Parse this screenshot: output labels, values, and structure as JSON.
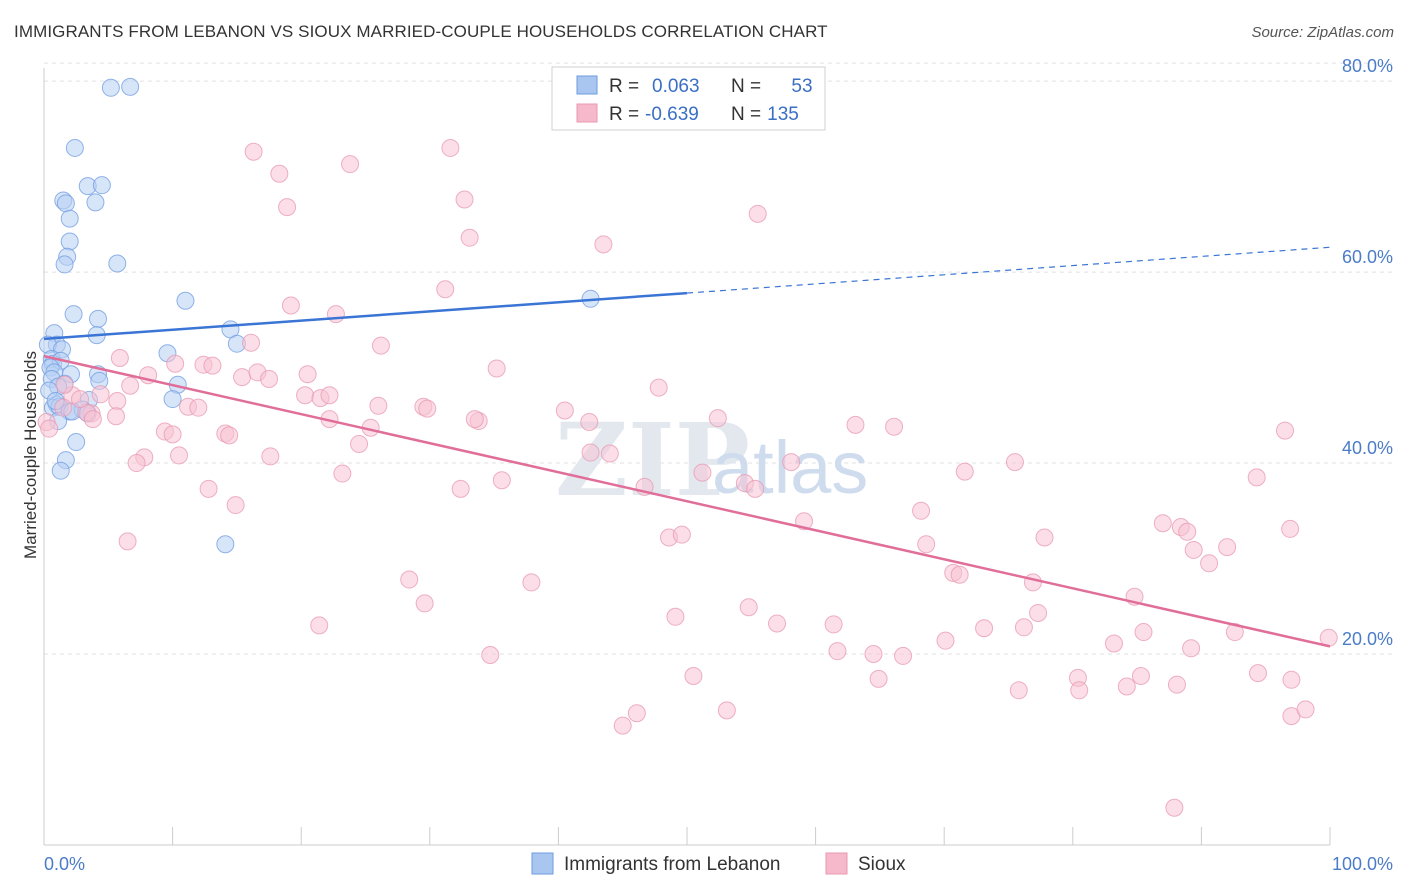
{
  "title": "IMMIGRANTS FROM LEBANON VS SIOUX MARRIED-COUPLE HOUSEHOLDS CORRELATION CHART",
  "source": "Source: ZipAtlas.com",
  "watermark": {
    "zip": "ZIP",
    "atlas": "atlas"
  },
  "legend": {
    "r_label": "R =",
    "n_label": "N =",
    "rows": [
      {
        "r": "0.063",
        "n": "53",
        "color": "#a9c6f0"
      },
      {
        "r": "-0.639",
        "n": "135",
        "color": "#f6b8cb"
      }
    ]
  },
  "colors": {
    "blue": "#3a75d6",
    "pink": "#e06e98",
    "blue_fill": "#b7d0f4",
    "pink_fill": "#f7c3d3"
  },
  "chart_data": {
    "type": "scatter",
    "title": "IMMIGRANTS FROM LEBANON VS SIOUX MARRIED-COUPLE HOUSEHOLDS CORRELATION CHART",
    "xlabel": "",
    "ylabel": "Married-couple Households",
    "xlim": [
      0,
      100
    ],
    "ylim": [
      0,
      82
    ],
    "x_tick_labels": [
      "0.0%",
      "100.0%"
    ],
    "y_ticks": [
      20,
      40,
      60,
      80
    ],
    "y_tick_labels": [
      "20.0%",
      "40.0%",
      "60.0%",
      "80.0%"
    ],
    "grid": true,
    "series": [
      {
        "name": "Immigrants from Lebanon",
        "color": "#3a75d6",
        "r": 0.063,
        "n": 53,
        "trend": {
          "x": [
            0,
            50
          ],
          "y": [
            53.0,
            57.8
          ],
          "dashed_to": [
            100,
            62.6
          ]
        },
        "points": [
          [
            5.2,
            79.3
          ],
          [
            6.7,
            79.4
          ],
          [
            2.4,
            73.0
          ],
          [
            3.4,
            69.0
          ],
          [
            4.5,
            69.1
          ],
          [
            1.5,
            67.5
          ],
          [
            1.7,
            67.2
          ],
          [
            4.0,
            67.3
          ],
          [
            2.0,
            65.6
          ],
          [
            2.0,
            63.2
          ],
          [
            1.8,
            61.6
          ],
          [
            1.6,
            60.8
          ],
          [
            5.7,
            60.9
          ],
          [
            11.0,
            57.0
          ],
          [
            42.5,
            57.2
          ],
          [
            2.3,
            55.6
          ],
          [
            4.2,
            55.1
          ],
          [
            0.8,
            53.6
          ],
          [
            4.1,
            53.4
          ],
          [
            14.5,
            54.0
          ],
          [
            1.0,
            52.4
          ],
          [
            15.0,
            52.5
          ],
          [
            0.3,
            52.4
          ],
          [
            1.4,
            51.9
          ],
          [
            9.6,
            51.5
          ],
          [
            0.6,
            50.9
          ],
          [
            0.7,
            50.4
          ],
          [
            1.3,
            50.7
          ],
          [
            0.5,
            50.0
          ],
          [
            0.8,
            49.5
          ],
          [
            4.2,
            49.3
          ],
          [
            2.1,
            49.3
          ],
          [
            0.6,
            48.8
          ],
          [
            4.3,
            48.6
          ],
          [
            1.6,
            48.3
          ],
          [
            10.4,
            48.2
          ],
          [
            1.1,
            48.0
          ],
          [
            0.4,
            47.6
          ],
          [
            3.5,
            46.6
          ],
          [
            10.0,
            46.7
          ],
          [
            1.0,
            46.1
          ],
          [
            0.7,
            45.8
          ],
          [
            1.2,
            45.9
          ],
          [
            2.0,
            45.4
          ],
          [
            3.0,
            45.6
          ],
          [
            2.2,
            45.4
          ],
          [
            1.1,
            44.4
          ],
          [
            2.5,
            42.2
          ],
          [
            1.7,
            40.3
          ],
          [
            1.3,
            39.2
          ],
          [
            14.1,
            31.5
          ],
          [
            3.4,
            45.2
          ],
          [
            0.9,
            46.5
          ]
        ]
      },
      {
        "name": "Sioux",
        "color": "#e06e98",
        "r": -0.639,
        "n": 135,
        "trend": {
          "x": [
            0,
            100
          ],
          "y": [
            51.2,
            20.8
          ]
        },
        "points": [
          [
            16.3,
            72.6
          ],
          [
            31.6,
            73.0
          ],
          [
            23.8,
            71.3
          ],
          [
            18.3,
            70.3
          ],
          [
            32.7,
            67.6
          ],
          [
            18.9,
            66.8
          ],
          [
            55.5,
            66.1
          ],
          [
            33.1,
            63.6
          ],
          [
            43.5,
            62.9
          ],
          [
            31.2,
            58.2
          ],
          [
            19.2,
            56.5
          ],
          [
            22.7,
            55.6
          ],
          [
            26.2,
            52.3
          ],
          [
            16.1,
            52.6
          ],
          [
            5.9,
            51.0
          ],
          [
            10.2,
            50.4
          ],
          [
            12.4,
            50.3
          ],
          [
            13.1,
            50.2
          ],
          [
            35.2,
            49.9
          ],
          [
            8.1,
            49.2
          ],
          [
            15.4,
            49.0
          ],
          [
            16.6,
            49.5
          ],
          [
            17.5,
            48.8
          ],
          [
            20.5,
            49.3
          ],
          [
            6.7,
            48.1
          ],
          [
            47.8,
            47.9
          ],
          [
            20.3,
            47.1
          ],
          [
            21.5,
            46.8
          ],
          [
            22.2,
            47.1
          ],
          [
            5.7,
            46.5
          ],
          [
            11.2,
            45.9
          ],
          [
            12.0,
            45.8
          ],
          [
            26.0,
            46.0
          ],
          [
            29.5,
            45.9
          ],
          [
            29.8,
            45.7
          ],
          [
            40.5,
            45.5
          ],
          [
            3.7,
            45.2
          ],
          [
            5.6,
            44.9
          ],
          [
            22.2,
            44.6
          ],
          [
            33.8,
            44.4
          ],
          [
            42.4,
            44.3
          ],
          [
            52.4,
            44.7
          ],
          [
            63.1,
            44.0
          ],
          [
            66.1,
            43.8
          ],
          [
            96.5,
            43.4
          ],
          [
            9.4,
            43.3
          ],
          [
            10.0,
            43.0
          ],
          [
            14.1,
            43.1
          ],
          [
            14.4,
            42.9
          ],
          [
            25.4,
            43.7
          ],
          [
            24.5,
            42.0
          ],
          [
            33.5,
            44.6
          ],
          [
            42.5,
            41.1
          ],
          [
            44.0,
            41.0
          ],
          [
            7.8,
            40.6
          ],
          [
            10.5,
            40.8
          ],
          [
            17.6,
            40.7
          ],
          [
            7.2,
            40.0
          ],
          [
            58.1,
            40.1
          ],
          [
            75.5,
            40.1
          ],
          [
            23.2,
            38.9
          ],
          [
            35.6,
            38.2
          ],
          [
            51.2,
            39.0
          ],
          [
            71.6,
            39.1
          ],
          [
            94.3,
            38.5
          ],
          [
            12.8,
            37.3
          ],
          [
            32.4,
            37.3
          ],
          [
            46.7,
            37.5
          ],
          [
            54.5,
            37.9
          ],
          [
            55.3,
            37.3
          ],
          [
            14.9,
            35.6
          ],
          [
            68.2,
            35.0
          ],
          [
            59.1,
            33.9
          ],
          [
            87.0,
            33.7
          ],
          [
            88.4,
            33.3
          ],
          [
            96.9,
            33.1
          ],
          [
            88.9,
            32.8
          ],
          [
            48.6,
            32.2
          ],
          [
            49.6,
            32.5
          ],
          [
            77.8,
            32.2
          ],
          [
            6.5,
            31.8
          ],
          [
            68.6,
            31.5
          ],
          [
            92.0,
            31.2
          ],
          [
            89.4,
            30.9
          ],
          [
            90.6,
            29.5
          ],
          [
            70.7,
            28.5
          ],
          [
            71.2,
            28.3
          ],
          [
            28.4,
            27.8
          ],
          [
            37.9,
            27.5
          ],
          [
            76.9,
            27.5
          ],
          [
            84.8,
            26.0
          ],
          [
            29.6,
            25.3
          ],
          [
            54.8,
            24.9
          ],
          [
            49.1,
            23.9
          ],
          [
            77.3,
            24.3
          ],
          [
            21.4,
            23.0
          ],
          [
            57.0,
            23.2
          ],
          [
            61.4,
            23.1
          ],
          [
            73.1,
            22.7
          ],
          [
            76.2,
            22.8
          ],
          [
            85.5,
            22.3
          ],
          [
            92.6,
            22.3
          ],
          [
            99.9,
            21.7
          ],
          [
            70.1,
            21.4
          ],
          [
            83.2,
            21.1
          ],
          [
            89.2,
            20.6
          ],
          [
            61.7,
            20.3
          ],
          [
            34.7,
            19.9
          ],
          [
            64.5,
            20.0
          ],
          [
            66.8,
            19.8
          ],
          [
            50.5,
            17.7
          ],
          [
            64.9,
            17.4
          ],
          [
            80.4,
            17.5
          ],
          [
            85.3,
            17.7
          ],
          [
            94.4,
            18.0
          ],
          [
            84.2,
            16.6
          ],
          [
            88.1,
            16.8
          ],
          [
            80.5,
            16.2
          ],
          [
            97.0,
            17.3
          ],
          [
            75.8,
            16.2
          ],
          [
            97.0,
            13.5
          ],
          [
            98.1,
            14.2
          ],
          [
            53.1,
            14.1
          ],
          [
            46.1,
            13.8
          ],
          [
            45.0,
            12.5
          ],
          [
            87.9,
            3.9
          ],
          [
            2.2,
            47.1
          ],
          [
            1.5,
            45.8
          ],
          [
            3.3,
            45.3
          ],
          [
            2.8,
            46.7
          ],
          [
            0.2,
            44.3
          ],
          [
            1.6,
            48.2
          ],
          [
            0.4,
            43.6
          ],
          [
            3.8,
            44.6
          ],
          [
            4.4,
            47.2
          ]
        ]
      }
    ]
  },
  "bottom_legend": [
    {
      "label": "Immigrants from Lebanon",
      "color": "#a9c6f0"
    },
    {
      "label": "Sioux",
      "color": "#f6b8cb"
    }
  ]
}
